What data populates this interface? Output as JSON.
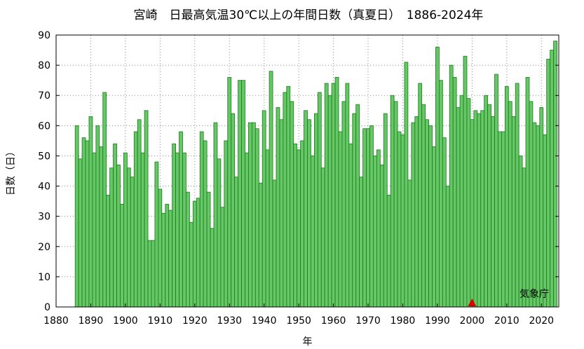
{
  "chart_data": {
    "type": "bar",
    "title": "宮崎　日最高気温30℃以上の年間日数（真夏日）　1886-2024年",
    "xlabel": "年",
    "ylabel": "日数（日）",
    "credit": "気象庁",
    "xlim": [
      1880,
      2025
    ],
    "ylim": [
      0,
      90
    ],
    "x_ticks": [
      1880,
      1890,
      1900,
      1910,
      1920,
      1930,
      1940,
      1950,
      1960,
      1970,
      1980,
      1990,
      2000,
      2010,
      2020
    ],
    "y_ticks": [
      0,
      10,
      20,
      30,
      40,
      50,
      60,
      70,
      80,
      90
    ],
    "grid": true,
    "bar_color": "#66c766",
    "bar_edge_color": "#1a7a1a",
    "marker_year": 2000,
    "marker_color": "#e00000",
    "years": [
      1886,
      1887,
      1888,
      1889,
      1890,
      1891,
      1892,
      1893,
      1894,
      1895,
      1896,
      1897,
      1898,
      1899,
      1900,
      1901,
      1902,
      1903,
      1904,
      1905,
      1906,
      1907,
      1908,
      1909,
      1910,
      1911,
      1912,
      1913,
      1914,
      1915,
      1916,
      1917,
      1918,
      1919,
      1920,
      1921,
      1922,
      1923,
      1924,
      1925,
      1926,
      1927,
      1928,
      1929,
      1930,
      1931,
      1932,
      1933,
      1934,
      1935,
      1936,
      1937,
      1938,
      1939,
      1940,
      1941,
      1942,
      1943,
      1944,
      1945,
      1946,
      1947,
      1948,
      1949,
      1950,
      1951,
      1952,
      1953,
      1954,
      1955,
      1956,
      1957,
      1958,
      1959,
      1960,
      1961,
      1962,
      1963,
      1964,
      1965,
      1966,
      1967,
      1968,
      1969,
      1970,
      1971,
      1972,
      1973,
      1974,
      1975,
      1976,
      1977,
      1978,
      1979,
      1980,
      1981,
      1982,
      1983,
      1984,
      1985,
      1986,
      1987,
      1988,
      1989,
      1990,
      1991,
      1992,
      1993,
      1994,
      1995,
      1996,
      1997,
      1998,
      1999,
      2000,
      2001,
      2002,
      2003,
      2004,
      2005,
      2006,
      2007,
      2008,
      2009,
      2010,
      2011,
      2012,
      2013,
      2014,
      2015,
      2016,
      2017,
      2018,
      2019,
      2020,
      2021,
      2022,
      2023,
      2024
    ],
    "values": [
      60,
      49,
      56,
      55,
      63,
      51,
      60,
      53,
      71,
      37,
      46,
      54,
      47,
      34,
      51,
      46,
      43,
      58,
      62,
      51,
      65,
      22,
      22,
      48,
      39,
      31,
      34,
      32,
      54,
      51,
      58,
      51,
      38,
      28,
      35,
      36,
      58,
      55,
      38,
      26,
      61,
      49,
      33,
      55,
      76,
      64,
      43,
      75,
      75,
      51,
      61,
      61,
      59,
      41,
      65,
      52,
      78,
      42,
      66,
      62,
      71,
      73,
      68,
      54,
      52,
      55,
      65,
      62,
      50,
      64,
      71,
      46,
      74,
      70,
      74,
      76,
      58,
      68,
      74,
      54,
      64,
      67,
      43,
      59,
      59,
      60,
      50,
      52,
      47,
      64,
      37,
      70,
      68,
      58,
      57,
      81,
      42,
      61,
      63,
      74,
      67,
      62,
      60,
      53,
      86,
      75,
      56,
      40,
      80,
      76,
      66,
      70,
      83,
      69,
      62,
      65,
      64,
      65,
      70,
      67,
      63,
      77,
      58,
      58,
      73,
      68,
      63,
      74,
      50,
      46,
      76,
      68,
      61,
      60,
      66,
      57,
      82,
      85,
      88
    ]
  }
}
